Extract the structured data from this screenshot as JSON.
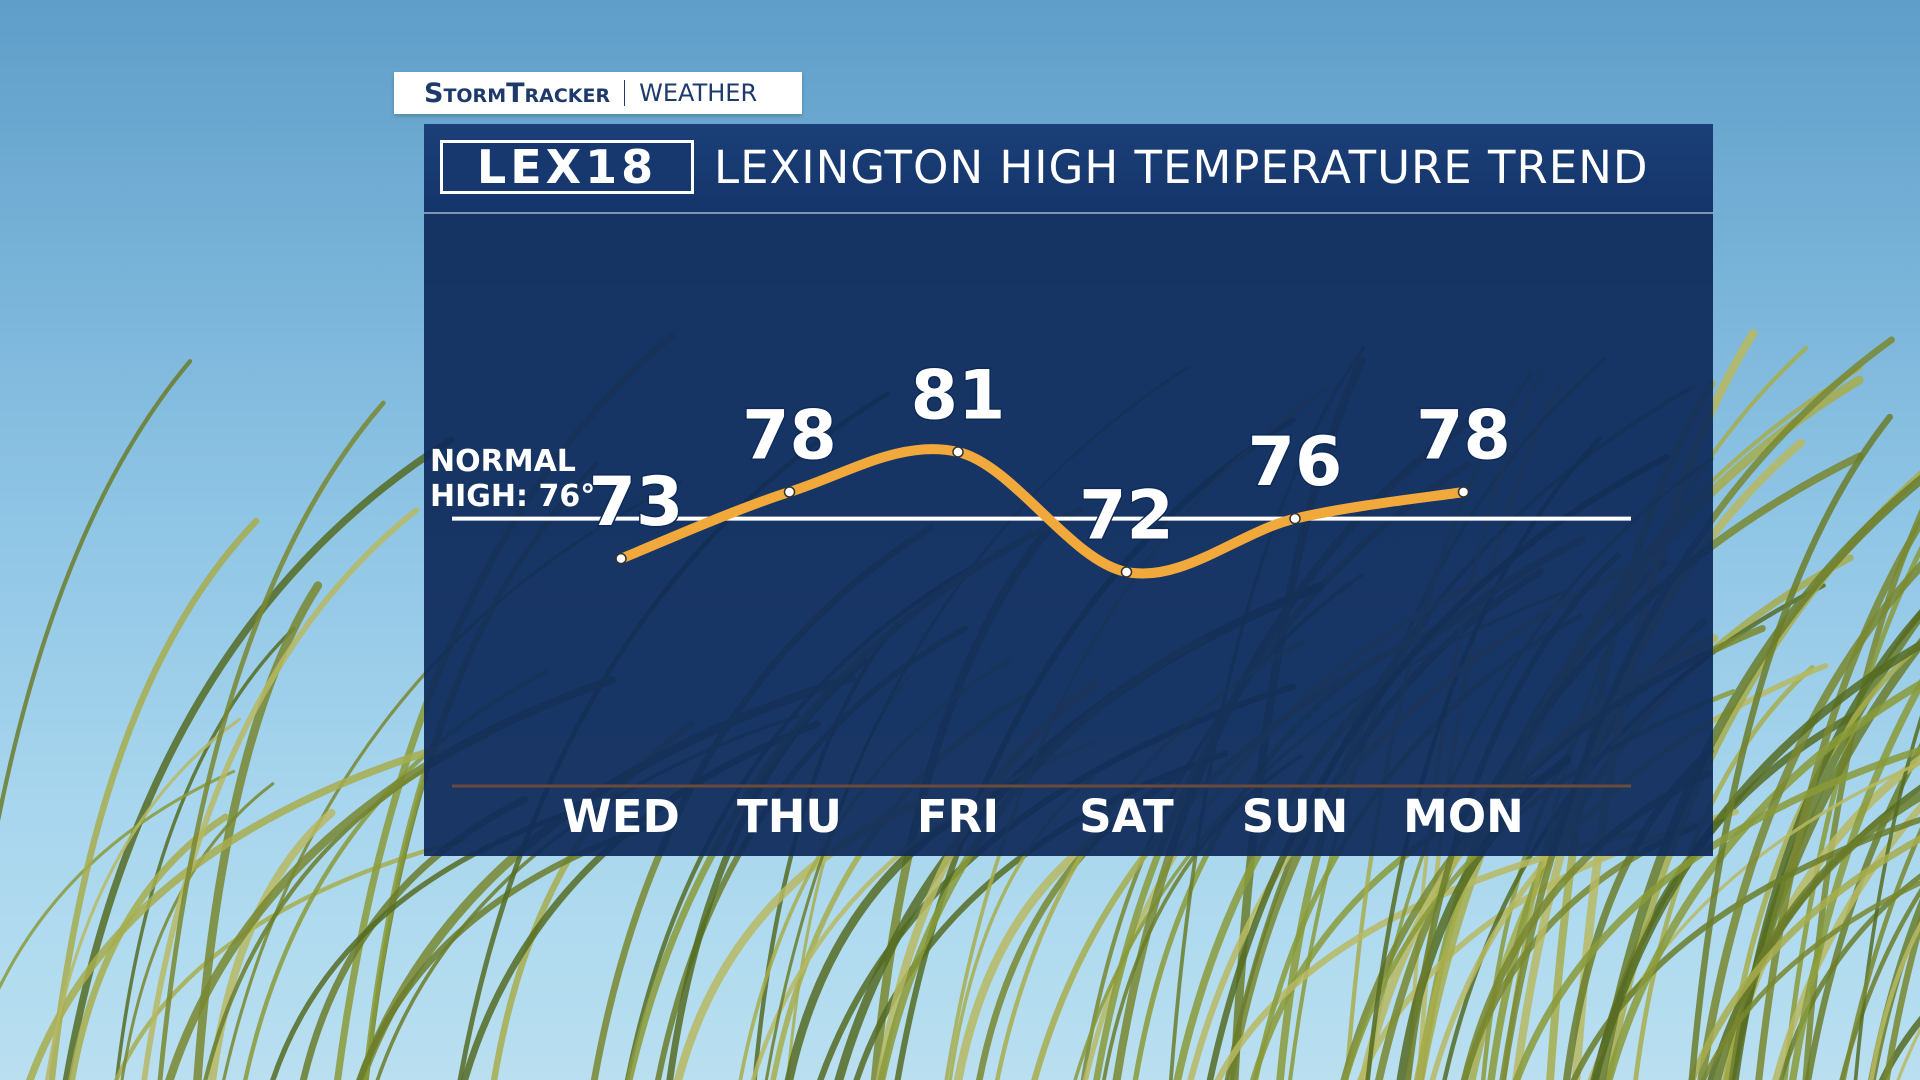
{
  "branding": {
    "show": "StormTracker",
    "section": "WEATHER",
    "station_logo": "LEX18"
  },
  "chart_data": {
    "type": "line",
    "title": "LEXINGTON HIGH TEMPERATURE TREND",
    "categories": [
      "WED",
      "THU",
      "FRI",
      "SAT",
      "SUN",
      "MON"
    ],
    "values": [
      73,
      78,
      81,
      72,
      76,
      78
    ],
    "color": "#f2a93b",
    "reference_line": {
      "value": 76,
      "label": "NORMAL HIGH: 76°"
    }
  }
}
